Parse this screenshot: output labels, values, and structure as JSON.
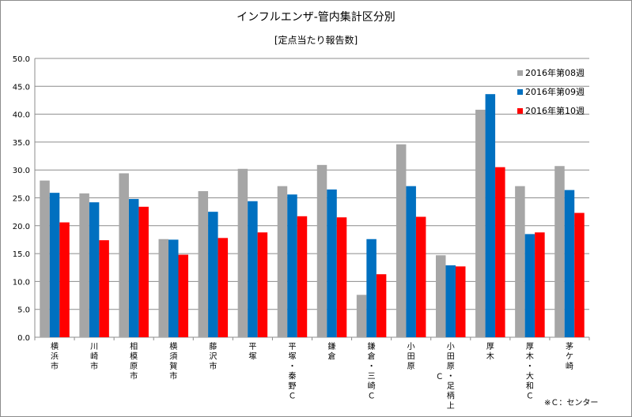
{
  "chart_data": {
    "type": "bar",
    "title": "インフルエンザ-管内集計区分別",
    "subtitle": "[定点当たり報告数]",
    "ylim": [
      0,
      50
    ],
    "yticks": [
      "0.0",
      "5.0",
      "10.0",
      "15.0",
      "20.0",
      "25.0",
      "30.0",
      "35.0",
      "40.0",
      "45.0",
      "50.0"
    ],
    "grid": true,
    "legend_position": "top-right",
    "categories": [
      [
        "横",
        "浜",
        "市"
      ],
      [
        "川",
        "崎",
        "市"
      ],
      [
        "相",
        "模",
        "原",
        "市"
      ],
      [
        "横",
        "須",
        "賀",
        "市"
      ],
      [
        "藤",
        "沢",
        "市"
      ],
      [
        "平",
        "塚"
      ],
      [
        "平",
        "塚",
        "・",
        "秦",
        "野",
        "Ｃ"
      ],
      [
        "鎌",
        "倉"
      ],
      [
        "鎌",
        "倉",
        "・",
        "三",
        "崎",
        "Ｃ"
      ],
      [
        "小",
        "田",
        "原"
      ],
      [
        "小",
        "田",
        "原",
        "・",
        "足",
        "柄",
        "上"
      ],
      [
        "厚",
        "木"
      ],
      [
        "厚",
        "木",
        "・",
        "大",
        "和",
        "Ｃ"
      ],
      [
        "茅",
        "ケ",
        "崎"
      ]
    ],
    "extra_label": {
      "text": "Ｃ",
      "category_index": 10
    },
    "series": [
      {
        "name": "2016年第08週",
        "color": "#a6a6a6",
        "values": [
          28.1,
          25.8,
          29.4,
          17.6,
          26.2,
          30.2,
          27.1,
          30.9,
          7.6,
          34.6,
          14.7,
          40.8,
          27.1,
          30.7
        ]
      },
      {
        "name": "2016年第09週",
        "color": "#0070c0",
        "values": [
          25.9,
          24.2,
          24.8,
          17.5,
          22.5,
          24.4,
          25.6,
          26.5,
          17.6,
          27.1,
          12.9,
          43.6,
          18.5,
          26.4
        ]
      },
      {
        "name": "2016年第10週",
        "color": "#ff0000",
        "values": [
          20.6,
          17.4,
          23.4,
          14.8,
          17.8,
          18.8,
          21.7,
          21.5,
          11.3,
          21.6,
          12.7,
          30.5,
          18.8,
          22.3
        ]
      }
    ]
  },
  "footnote": "※Ｃ：センター"
}
